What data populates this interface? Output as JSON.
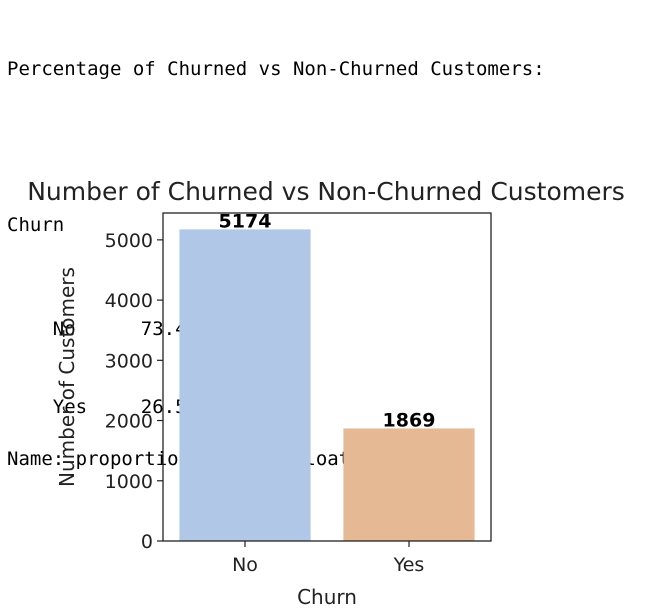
{
  "output": {
    "header": "Percentage of Churned vs Non-Churned Customers:",
    "series_name": "Churn",
    "rows": [
      {
        "index": "No",
        "value": "73.463013"
      },
      {
        "index": "Yes",
        "value": "26.536987"
      }
    ],
    "footer": "Name: proportion, dtype: float64"
  },
  "chart_data": {
    "type": "bar",
    "title": "Number of Churned vs Non-Churned Customers",
    "xlabel": "Churn",
    "ylabel": "Number of Customers",
    "categories": [
      "No",
      "Yes"
    ],
    "values": [
      5174,
      1869
    ],
    "data_labels": [
      "5174",
      "1869"
    ],
    "colors": [
      "#b1c7e8",
      "#e6b995"
    ],
    "yticks": [
      "0",
      "1000",
      "2000",
      "3000",
      "4000",
      "5000"
    ],
    "ylim": [
      0,
      5446
    ],
    "grid": false
  }
}
